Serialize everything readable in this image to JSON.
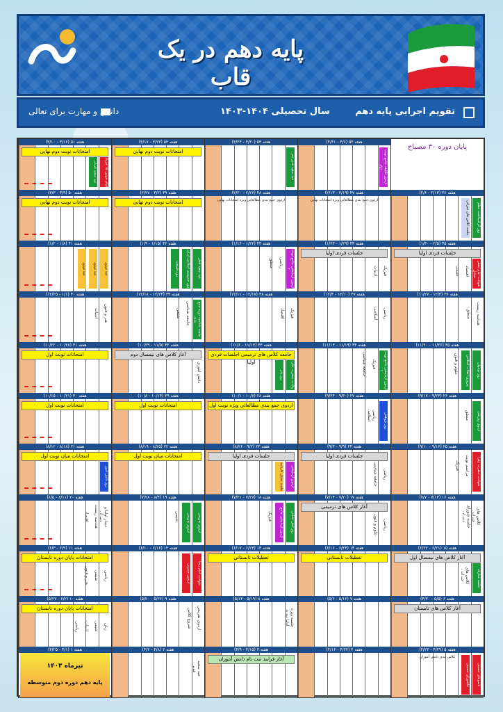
{
  "header": {
    "title": "پایه دهم در یک قاب",
    "calendar_title": "تقویم اجرایی پایه دهم",
    "school_year": "سال تحصیلی ۱۴۰۴-۱۴۰۳",
    "tagline": "دانش و مهارت برای تعالی"
  },
  "colors": {
    "brand": "#1b64b8",
    "friday": "#f2b98a",
    "banner_yellow": "#fff200",
    "week_header": "#1e4f8c",
    "green": "#1a9a3a",
    "purple": "#c026d3",
    "red": "#e11d2a"
  },
  "weeks": [
    {
      "row": 0,
      "cells": [
        {
          "week": "پایان دوره ۳۰ مصباح",
          "special": "end"
        },
        {
          "week": "هفته ۵۴ (۴/۶ - ۴/۳۱)",
          "bars": [
            {
              "text": "آزمون تکلیف جامع نوبت دوم",
              "color": "#c026d3"
            }
          ]
        },
        {
          "week": "هفته ۵۳ (۴/۳۰ - ۳/۲۴)",
          "bars": [
            {
              "text": "عید سعید غدیر خم",
              "color": "#1a9a3a"
            }
          ]
        },
        {
          "week": "هفته ۵۲ (۳/۲۳ - ۳/۱۷)",
          "banner": "امتحانات نوبت دوم نهایی"
        },
        {
          "week": "هفته ۵۱ (۳/۱۶ - ۳/۱۰)",
          "banner": "امتحانات نوبت دوم نهایی",
          "bars": [
            {
              "text": "قیام خونین ۱۵ خرداد",
              "color": "#e11d2a"
            },
            {
              "text": "عید سعید قربان",
              "color": "#1a9a3a"
            }
          ],
          "arrow": true
        }
      ]
    },
    {
      "row": 1,
      "cells": [
        {
          "week": "هفته ۴۶ (۲/۱۳ - ۲/۶)",
          "bars": [
            {
              "text": "روز گرامیداشت معلم",
              "color": "#1a9a3a"
            },
            {
              "text": "جلسه کلاس های جبرانی",
              "color": "#c9d6f2"
            }
          ]
        },
        {
          "week": "هفته ۴۷ (۲/۱۹ - ۲/۱۳)",
          "notes": [
            "اردوی جمع بندی مطالعاتی ویژه امتحانات نهایی"
          ]
        },
        {
          "week": "هفته ۴۸ (۲/۲۶ - ۲/۲۰)",
          "notes": [
            "اردوی جمع بندی مطالعاتی ویژه امتحانات نهایی"
          ]
        },
        {
          "week": "هفته ۴۹ (۳/۲ - ۲/۲۷)",
          "banner": "امتحانات نوبت دوم نهایی"
        },
        {
          "week": "هفته ۵۰ (۳/۹ - ۳/۳)",
          "banner": "امتحانات نوبت دوم نهایی",
          "arrow": true
        }
      ]
    },
    {
      "row": 2,
      "cells": [
        {
          "week": "هفته ۴۵ (۲/۵ - ۱/۳۰)",
          "banner": "جلسات فردی اولیا",
          "bars": [
            {
              "text": "شهادت امام جعفر صادق",
              "color": "#e11d2a"
            }
          ],
          "plain": [
            "اقتصاد",
            "شیمی"
          ]
        },
        {
          "week": "هفته ۴۴ (۱/۲۹ - ۱/۲۳)",
          "banner": "جلسات فردی اولیا",
          "plain": [
            "فیزیک",
            "ادبیات"
          ]
        },
        {
          "week": "هفته ۴۳ (۱/۲۲ - ۱/۱۶)",
          "bars": [
            {
              "text": "آزمون آزمایشی جامع نوبت ۲",
              "color": "#c026d3"
            }
          ],
          "plain": [
            "ریاضی",
            "منطق"
          ]
        },
        {
          "week": "هفته ۴۲ (۱/۱۵ - ۱/۹)",
          "bars": [
            {
              "text": "عید سعید فطر",
              "color": "#1a9a3a"
            },
            {
              "text": "روز جمهوری اسلامی ایران",
              "color": "#1a9a3a"
            },
            {
              "text": "روز طبیعت",
              "color": "#1a9a3a"
            }
          ]
        },
        {
          "week": "هفته ۴۱ (۱/۸ - ۱/۲)",
          "bars": [
            {
              "text": "عید نوروز",
              "color": "#f7c23a"
            },
            {
              "text": "عید نوروز",
              "color": "#f7c23a"
            },
            {
              "text": "عید نوروز",
              "color": "#f7c23a"
            }
          ],
          "arrow": true
        }
      ]
    },
    {
      "row": 3,
      "cells": [
        {
          "week": "هفته ۳۶ (۱۲/۳ - ۱۱/۲۷)",
          "plain": [
            "هندسه زیست",
            "منطق"
          ]
        },
        {
          "week": "هفته ۳۷ (۱۲/۱۰ - ۱۲/۴)",
          "plain": [
            "ریاضی",
            "اسلامی"
          ]
        },
        {
          "week": "هفته ۳۸ (۱۲/۱۷ - ۱۲/۱۱)",
          "plain": [
            "فیزیک",
            "اقتصاد"
          ]
        },
        {
          "week": "هفته ۳۹ (۱۲/۲۴ - ۱۲/۱۸)",
          "plain": [
            "جامعه شناسی",
            "شیمی"
          ],
          "bars": [
            {
              "text": "جلسه شناخت دوره جمع بندی",
              "color": "#1a9a3a"
            }
          ]
        },
        {
          "week": "هفته ۴۰ (۱/۱ - ۱۲/۲۵)",
          "plain": [
            "هنر و فنون",
            "ادبیات"
          ],
          "arrow": true
        }
      ]
    },
    {
      "row": 4,
      "cells": [
        {
          "week": "هفته ۳۵ (۱۱/۲۶ - ۱۱/۲۰)",
          "bars": [
            {
              "text": "روز نوجوان",
              "color": "#1a9a3a"
            },
            {
              "text": "پیروزی انقلاب اسلامی",
              "color": "#1a9a3a"
            }
          ],
          "plain": [
            "علوم و فنون"
          ]
        },
        {
          "week": "هفته ۳۴ (۱۱/۱۹ - ۱۱/۱۳)",
          "bars": [
            {
              "text": "آزمون آزمایشی جامع نوبت ۱",
              "color": "#1a9a3a"
            }
          ],
          "plain": [
            "فیزیک",
            "جامعه شناسی"
          ]
        },
        {
          "week": "هفته ۳۳ (۱۱/۱۲ - ۱۱/۶)",
          "banner": "جامعه کلاس های ترمیمی اجلسات فردی اولیا",
          "bars": [
            {
              "text": "ولادت حضرت علی",
              "color": "#1a9a3a"
            },
            {
              "text": "روز پدر",
              "color": "#1a9a3a"
            }
          ]
        },
        {
          "week": "هفته ۳۲ (۱۱/۵ - ۱۰/۲۹)",
          "banner": "آغاز کلاس های نیمسال دوم",
          "plain": [
            "دانش آموزی"
          ]
        },
        {
          "week": "هفته ۳۱ (۱۰/۲۸ - ۱۰/۲۲)",
          "banner": "امتحانات نوبت اول",
          "arrow": true
        }
      ]
    },
    {
      "row": 5,
      "cells": [
        {
          "week": "هفته ۲۶ (۹/۲۳ - ۹/۱۷)",
          "bars": [
            {
              "text": "اردوی ورزشی",
              "color": "#1a9a3a"
            }
          ],
          "plain": [
            "منطق"
          ]
        },
        {
          "week": "هفته ۲۷ (۹/۳۰ - ۹/۲۴)",
          "bars": [
            {
              "text": "روز پژوهش",
              "color": "#1e4fd8"
            }
          ],
          "plain": [
            "ریاضی اسلامی"
          ]
        },
        {
          "week": "هفته ۲۸ (۱۰/۷ - ۱۰/۱)",
          "banner": "اردوی جمع بندی مطالعاتی ویژه نوبت اول"
        },
        {
          "week": "هفته ۲۹ (۱۰/۱۴ - ۱۰/۸)",
          "banner": "امتحانات نوبت اول"
        },
        {
          "week": "هفته ۳۰ (۱۰/۲۱ - ۱۰/۱۵)",
          "banner": "امتحانات نوبت اول",
          "arrow": true
        }
      ]
    },
    {
      "row": 6,
      "cells": [
        {
          "week": "هفته ۲۵ (۹/۱۶ - ۹/۱۰)",
          "bars": [
            {
              "text": "شهادت حضرت زهرا",
              "color": "#e11d2a"
            }
          ],
          "plain": [
            "مراسم نوبت",
            "فیزیک"
          ]
        },
        {
          "week": "هفته ۲۴ (۹/۹ - ۹/۳)",
          "banner": "جلسات فردی اولیا",
          "plain": [
            "ریاضی",
            "جامعه شناسی"
          ]
        },
        {
          "week": "هفته ۲۳ (۹/۲ - ۸/۲۶)",
          "banner": "جلسات فردی اولیا",
          "bars": [
            {
              "text": "آزمون آزمایشی",
              "color": "#c026d3"
            },
            {
              "text": "جلسه تحلیل کارنامه",
              "color": "#f7c23a"
            }
          ]
        },
        {
          "week": "هفته ۲۲ (۸/۲۵ - ۸/۱۹)",
          "banner": "امتحانات میان نوبت اول"
        },
        {
          "week": "هفته ۲۱ (۸/۱۸ - ۸/۱۲)",
          "banner": "امتحانات میان نوبت اول",
          "bars": [
            {
              "text": "روز دانش آموز",
              "color": "#1e4fd8"
            }
          ],
          "arrow": true
        }
      ]
    },
    {
      "row": 7,
      "cells": [
        {
          "week": "هفته ۱۶ (۷/۱۳ - ۷/۷)",
          "plain": [
            "کلاس های جبرانی",
            "جلسه شورای دبیران"
          ]
        },
        {
          "week": "هفته ۱۷ (۷/۲۰ - ۷/۱۴)",
          "banner": "آغاز کلاس های ترمیمی",
          "plain": [
            "ریاضی",
            "علوم و فنون"
          ]
        },
        {
          "week": "هفته ۱۸ (۷/۲۷ - ۷/۲۱)",
          "bars": [
            {
              "text": "روز آتش نشانی",
              "color": "#1a9a3a"
            },
            {
              "text": "آزمون آزمایشی جامع",
              "color": "#c026d3"
            }
          ],
          "plain": [
            "فیزیک"
          ]
        },
        {
          "week": "هفته ۱۹ (۸/۴ - ۷/۲۸)",
          "bars": [
            {
              "text": "اردوی تفریحی",
              "color": "#1a9a3a"
            },
            {
              "text": "اردوی تفریحی",
              "color": "#1a9a3a"
            }
          ],
          "plain": [
            "شیمی"
          ]
        },
        {
          "week": "هفته ۲۰ (۸/۱۱ - ۸/۵)",
          "plain": [
            "دیدار اولیا و دبیران",
            "هندسه زیست",
            "اقتصاد"
          ],
          "arrow": true
        }
      ]
    },
    {
      "row": 8,
      "cells": [
        {
          "week": "هفته ۱۵ (۶/۲۱ - ۶/۲۲)",
          "banner": "آغاز کلاس های نیمسال اول",
          "bars": [
            {
              "text": "جلسه معارفه",
              "color": "#1a9a3a"
            }
          ],
          "plain": [
            "کلاس های جبرانی"
          ]
        },
        {
          "week": "هفته ۱۴ (۶/۲۴ - ۶/۱۶)",
          "banner": "تعطیلات تابستانی"
        },
        {
          "week": "هفته ۱۳ (۶/۲۳ - ۶/۱۷)",
          "banner": "تعطیلات تابستانی"
        },
        {
          "week": "هفته ۱۲ (۶/۱۶ - ۶/۱۰)",
          "bars": [
            {
              "text": "شهادت امام رضا",
              "color": "#e11d2a"
            },
            {
              "text": "اربعین حسینی",
              "color": "#e11d2a"
            }
          ]
        },
        {
          "week": "هفته ۱۱ (۶/۹ - ۶/۳)",
          "banner": "امتحانات پایان دوره تابستان",
          "plain": [
            "ریاضی",
            "شیمی",
            "هنر و فنون"
          ],
          "arrow": true
        }
      ]
    },
    {
      "row": 9,
      "cells": [
        {
          "week": "هفته ۶ (۵/۵ - ۴/۳۰)",
          "banner": "آغاز کلاس های تابستان"
        },
        {
          "week": "هفته ۷ (۵/۱۲ - ۵/۶)"
        },
        {
          "week": "هفته ۸ (۵/۱۹ - ۵/۱۳)",
          "plain": [
            "جلسه ویژه اولیا دوره"
          ]
        },
        {
          "week": "هفته ۹ (۵/۲۶ - ۵/۲۰)",
          "plain": [
            "اردوی تفریحی",
            "شروع کلاس"
          ]
        },
        {
          "week": "هفته ۱۰ (۶/۲ - ۵/۲۷)",
          "banner": "امتحانات پایان دوره تابستان",
          "plain": [
            "زبان",
            "شیمی",
            "ادبیات",
            "ریاضی"
          ]
        }
      ]
    },
    {
      "row": 10,
      "cells": [
        {
          "week": "هفته ۵ (۴/۲۹ - ۴/۲۳)",
          "notes": [
            "کلاس بندی دانش آموزان"
          ],
          "bars": [
            {
              "text": "تاسوعای حسینی",
              "color": "#e11d2a"
            },
            {
              "text": "عاشورای حسینی",
              "color": "#e11d2a"
            }
          ]
        },
        {
          "week": "هفته ۴ (۴/۲۲ - ۴/۱۶)"
        },
        {
          "week": "هفته ۳ (۴/۱۵ - ۴/۹)",
          "banner": "آغاز فرایند ثبت نام دانش آموزان",
          "banner_color": "green"
        },
        {
          "week": "هفته ۲ (۴/۸ - ۴/۲)",
          "plain": [
            "عید سعید غدیر"
          ]
        },
        {
          "week": "هفته ۱ (۴/۱ - ۳/۲۵)",
          "special": "start"
        }
      ]
    }
  ],
  "start_box": {
    "month": "تیرماه ۱۴۰۳",
    "label": "پایه دهم دوره دوم متوسطه"
  }
}
